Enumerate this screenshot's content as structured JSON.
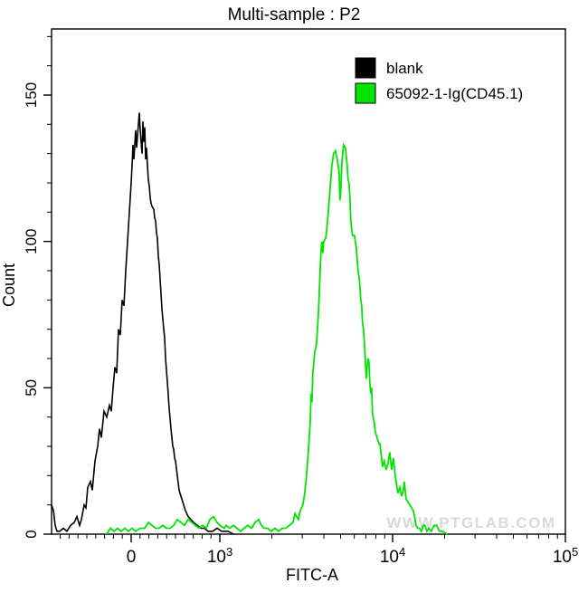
{
  "chart_data": {
    "type": "line",
    "subtype": "flow-cytometry-histogram",
    "title": "Multi-sample : P2",
    "xlabel": "FITC-A",
    "ylabel": "Count",
    "x_scale": "biexponential",
    "ylim": [
      0,
      172
    ],
    "grid": false,
    "legend_position": "top-right",
    "watermark": "WWW.PTGLAB.COM",
    "x_ticks_major": [
      {
        "value": 0,
        "base": "0",
        "exp": ""
      },
      {
        "value": 1000,
        "base": "10",
        "exp": "3"
      },
      {
        "value": 10000,
        "base": "10",
        "exp": "4"
      },
      {
        "value": 100000,
        "base": "10",
        "exp": "5"
      }
    ],
    "x_ticks_minor": [
      -800,
      -700,
      -600,
      -500,
      -400,
      -300,
      -200,
      -100,
      100,
      200,
      300,
      400,
      500,
      600,
      700,
      800,
      900,
      2000,
      3000,
      4000,
      5000,
      6000,
      7000,
      8000,
      9000,
      20000,
      30000,
      40000,
      50000,
      60000,
      70000,
      80000,
      90000
    ],
    "y_ticks_major": [
      {
        "value": 0,
        "label": "0"
      },
      {
        "value": 50,
        "label": "50"
      },
      {
        "value": 100,
        "label": "100"
      },
      {
        "value": 150,
        "label": "150"
      }
    ],
    "y_ticks_minor": [
      10,
      20,
      30,
      40,
      60,
      70,
      80,
      90,
      110,
      120,
      130,
      140,
      160,
      170
    ],
    "series": [
      {
        "name": "blank",
        "color": "#000000",
        "points": [
          [
            -898,
            10
          ],
          [
            -877,
            8
          ],
          [
            -857,
            3
          ],
          [
            -837,
            1
          ],
          [
            -806,
            1
          ],
          [
            -765,
            2
          ],
          [
            -724,
            1
          ],
          [
            -684,
            3
          ],
          [
            -643,
            4
          ],
          [
            -612,
            6
          ],
          [
            -582,
            3
          ],
          [
            -561,
            5
          ],
          [
            -531,
            10
          ],
          [
            -510,
            9
          ],
          [
            -490,
            16
          ],
          [
            -459,
            18
          ],
          [
            -439,
            15
          ],
          [
            -408,
            25
          ],
          [
            -378,
            30
          ],
          [
            -357,
            36
          ],
          [
            -337,
            33
          ],
          [
            -306,
            42
          ],
          [
            -276,
            40
          ],
          [
            -245,
            44
          ],
          [
            -224,
            42
          ],
          [
            -204,
            50
          ],
          [
            -184,
            57
          ],
          [
            -163,
            55
          ],
          [
            -143,
            70
          ],
          [
            -122,
            68
          ],
          [
            -102,
            80
          ],
          [
            -82,
            78
          ],
          [
            -61,
            90
          ],
          [
            -41,
            100
          ],
          [
            -20,
            110
          ],
          [
            0,
            120
          ],
          [
            10,
            126
          ],
          [
            20,
            133
          ],
          [
            31,
            128
          ],
          [
            51,
            138
          ],
          [
            61,
            132
          ],
          [
            82,
            140
          ],
          [
            92,
            144
          ],
          [
            102,
            138
          ],
          [
            112,
            134
          ],
          [
            122,
            130
          ],
          [
            133,
            141
          ],
          [
            143,
            134
          ],
          [
            153,
            139
          ],
          [
            163,
            128
          ],
          [
            173,
            132
          ],
          [
            184,
            126
          ],
          [
            194,
            121
          ],
          [
            204,
            119
          ],
          [
            214,
            115
          ],
          [
            224,
            113
          ],
          [
            235,
            112
          ],
          [
            255,
            111
          ],
          [
            265,
            108
          ],
          [
            276,
            107
          ],
          [
            286,
            103
          ],
          [
            296,
            101
          ],
          [
            306,
            95
          ],
          [
            316,
            92
          ],
          [
            327,
            87
          ],
          [
            347,
            77
          ],
          [
            367,
            70
          ],
          [
            378,
            67
          ],
          [
            388,
            60
          ],
          [
            408,
            52
          ],
          [
            429,
            43
          ],
          [
            449,
            36
          ],
          [
            459,
            33
          ],
          [
            469,
            30
          ],
          [
            480,
            29
          ],
          [
            490,
            26
          ],
          [
            500,
            25
          ],
          [
            520,
            20
          ],
          [
            541,
            15
          ],
          [
            561,
            13
          ],
          [
            582,
            11
          ],
          [
            612,
            8
          ],
          [
            643,
            6
          ],
          [
            673,
            5
          ],
          [
            704,
            4
          ],
          [
            745,
            3
          ],
          [
            786,
            2
          ],
          [
            827,
            2
          ],
          [
            867,
            1
          ],
          [
            918,
            1
          ],
          [
            969,
            2
          ],
          [
            1024,
            1
          ],
          [
            1114,
            1
          ],
          [
            1200,
            0
          ]
        ]
      },
      {
        "name": "65092-1-Ig(CD45.1)",
        "color": "#00e400",
        "points": [
          [
            -275,
            0
          ],
          [
            -235,
            2
          ],
          [
            -194,
            1
          ],
          [
            -153,
            2
          ],
          [
            -112,
            1
          ],
          [
            -71,
            2
          ],
          [
            -31,
            1
          ],
          [
            10,
            2
          ],
          [
            51,
            1
          ],
          [
            102,
            2
          ],
          [
            153,
            2
          ],
          [
            194,
            4
          ],
          [
            235,
            3
          ],
          [
            276,
            2
          ],
          [
            316,
            2
          ],
          [
            357,
            3
          ],
          [
            398,
            2
          ],
          [
            439,
            2
          ],
          [
            480,
            3
          ],
          [
            520,
            5
          ],
          [
            561,
            4
          ],
          [
            602,
            3
          ],
          [
            643,
            5
          ],
          [
            684,
            4
          ],
          [
            724,
            3
          ],
          [
            765,
            2
          ],
          [
            806,
            3
          ],
          [
            847,
            2
          ],
          [
            888,
            5
          ],
          [
            929,
            6
          ],
          [
            969,
            4
          ],
          [
            1000,
            3
          ],
          [
            1062,
            2
          ],
          [
            1088,
            3
          ],
          [
            1142,
            2
          ],
          [
            1198,
            3
          ],
          [
            1257,
            2
          ],
          [
            1319,
            1
          ],
          [
            1384,
            2
          ],
          [
            1452,
            3
          ],
          [
            1524,
            2
          ],
          [
            1599,
            4
          ],
          [
            1678,
            5
          ],
          [
            1740,
            3
          ],
          [
            1804,
            2
          ],
          [
            1893,
            2
          ],
          [
            1986,
            1
          ],
          [
            2084,
            2
          ],
          [
            2187,
            1
          ],
          [
            2295,
            2
          ],
          [
            2408,
            2
          ],
          [
            2527,
            3
          ],
          [
            2651,
            4
          ],
          [
            2719,
            7
          ],
          [
            2782,
            6
          ],
          [
            2850,
            5
          ],
          [
            2919,
            8
          ],
          [
            3026,
            10
          ],
          [
            3100,
            14
          ],
          [
            3175,
            20
          ],
          [
            3253,
            28
          ],
          [
            3333,
            38
          ],
          [
            3373,
            48
          ],
          [
            3414,
            45
          ],
          [
            3455,
            55
          ],
          [
            3540,
            62
          ],
          [
            3626,
            65
          ],
          [
            3670,
            70
          ],
          [
            3715,
            75
          ],
          [
            3760,
            82
          ],
          [
            3806,
            90
          ],
          [
            3852,
            97
          ],
          [
            3899,
            100
          ],
          [
            3946,
            96
          ],
          [
            3994,
            100
          ],
          [
            4091,
            101
          ],
          [
            4141,
            103
          ],
          [
            4242,
            110
          ],
          [
            4345,
            118
          ],
          [
            4451,
            126
          ],
          [
            4559,
            130
          ],
          [
            4670,
            131
          ],
          [
            4783,
            128
          ],
          [
            4900,
            124
          ],
          [
            4959,
            114
          ],
          [
            5019,
            118
          ],
          [
            5080,
            126
          ],
          [
            5142,
            130
          ],
          [
            5204,
            133
          ],
          [
            5331,
            132
          ],
          [
            5461,
            126
          ],
          [
            5527,
            121
          ],
          [
            5593,
            120
          ],
          [
            5661,
            115
          ],
          [
            5730,
            107
          ],
          [
            5799,
            104
          ],
          [
            5870,
            102
          ],
          [
            6013,
            102
          ],
          [
            6160,
            98
          ],
          [
            6234,
            94
          ],
          [
            6310,
            90
          ],
          [
            6386,
            88
          ],
          [
            6464,
            85
          ],
          [
            6542,
            80
          ],
          [
            6621,
            78
          ],
          [
            6702,
            72
          ],
          [
            6783,
            70
          ],
          [
            6866,
            65
          ],
          [
            6949,
            60
          ],
          [
            7034,
            53
          ],
          [
            7119,
            57
          ],
          [
            7206,
            60
          ],
          [
            7293,
            59
          ],
          [
            7382,
            52
          ],
          [
            7472,
            48
          ],
          [
            7563,
            50
          ],
          [
            7655,
            41
          ],
          [
            7842,
            38
          ],
          [
            7937,
            35
          ],
          [
            8132,
            33
          ],
          [
            8330,
            31
          ],
          [
            8431,
            31
          ],
          [
            8637,
            26
          ],
          [
            8742,
            23
          ],
          [
            8955,
            25
          ],
          [
            9174,
            22
          ],
          [
            9398,
            24
          ],
          [
            9628,
            28
          ],
          [
            9863,
            22
          ],
          [
            10104,
            26
          ],
          [
            10350,
            20
          ],
          [
            10603,
            16
          ],
          [
            10732,
            14
          ],
          [
            10994,
            16
          ],
          [
            11262,
            13
          ],
          [
            11537,
            15
          ],
          [
            11676,
            18
          ],
          [
            11961,
            12
          ],
          [
            12253,
            11
          ],
          [
            12552,
            10
          ],
          [
            12858,
            9
          ],
          [
            13172,
            8
          ],
          [
            13494,
            5
          ],
          [
            13657,
            3
          ],
          [
            13990,
            2
          ],
          [
            14331,
            2
          ],
          [
            14681,
            1
          ],
          [
            15039,
            3
          ],
          [
            15406,
            3
          ],
          [
            15782,
            1
          ],
          [
            16167,
            2
          ],
          [
            16762,
            1
          ],
          [
            17378,
            3
          ],
          [
            18018,
            3
          ],
          [
            18680,
            1
          ],
          [
            19367,
            1
          ],
          [
            20816,
            0
          ]
        ]
      }
    ]
  }
}
